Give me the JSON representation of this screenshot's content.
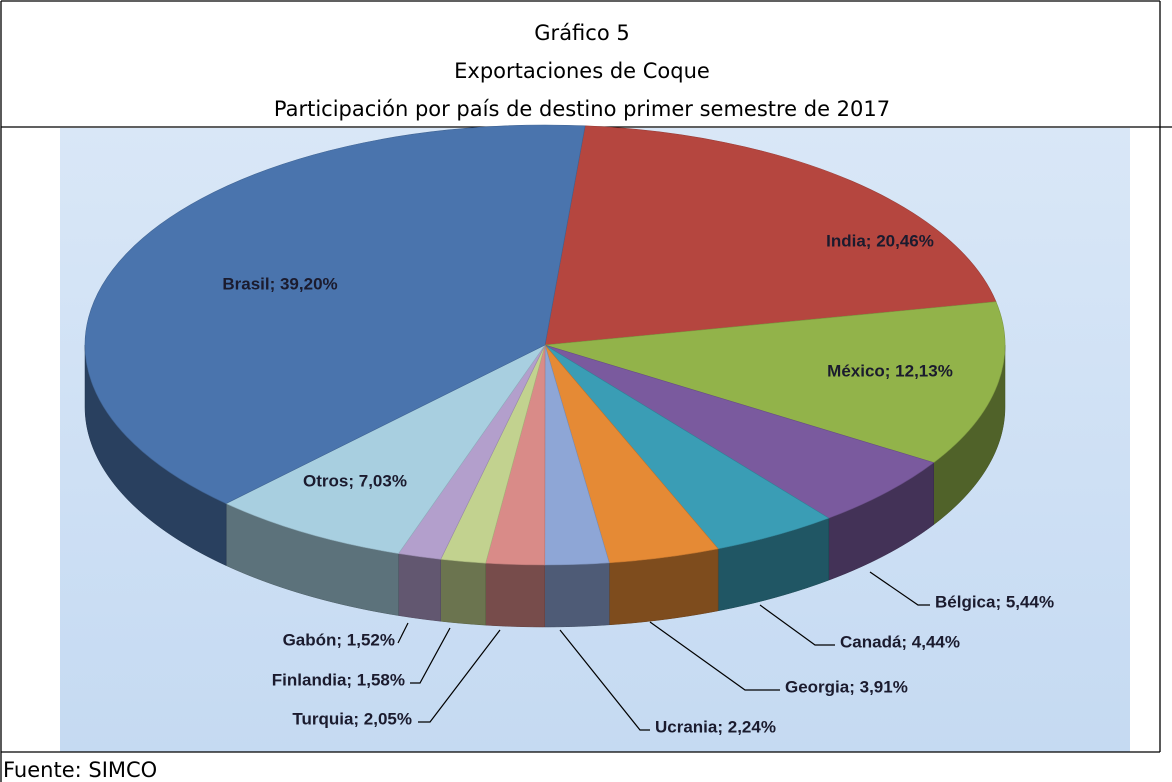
{
  "chart_data": {
    "type": "pie",
    "title_lines": [
      "Gráfico 5",
      "Exportaciones de Coque",
      "Participación por país de destino primer semestre de 2017"
    ],
    "values": [
      20.46,
      12.13,
      5.44,
      4.44,
      3.91,
      2.24,
      2.05,
      1.58,
      1.52,
      7.03,
      39.2
    ],
    "value_labels": [
      "India; 20,46%",
      "México; 12,13%",
      "Bélgica; 5,44%",
      "Canadá; 4,44%",
      "Georgia; 3,91%",
      "Ucrania; 2,24%",
      "Turquia; 2,05%",
      "Finlandia; 1,58%",
      "Gabón; 1,52%",
      "Otros; 7,03%",
      "Brasil; 39,20%"
    ],
    "colors": [
      "#b5463f",
      "#92b34a",
      "#7a5a9e",
      "#3a9db5",
      "#e58a35",
      "#8ea6d6",
      "#d98b88",
      "#c2d28f",
      "#b39fcc",
      "#a8cfe0",
      "#4a74ad"
    ],
    "source": "Fuente: SIMCO"
  }
}
